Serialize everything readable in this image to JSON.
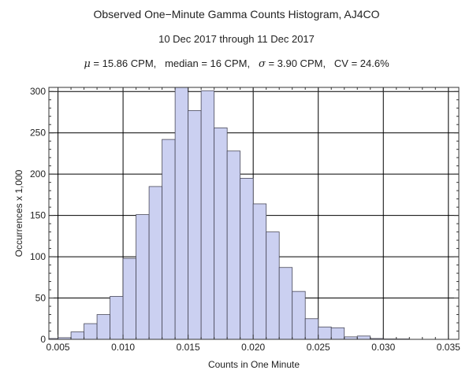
{
  "chart_data": {
    "type": "bar",
    "title": "Observed One−Minute Gamma Counts Histogram, AJ4CO",
    "subtitle": "10 Dec 2017 through 11 Dec 2017",
    "stats": {
      "mu_symbol": "μ",
      "mu_text": " = 15.86 CPM,   median = 16 CPM,   ",
      "sigma_symbol": "σ",
      "sigma_text": " = 3.90 CPM,   CV = 24.6%"
    },
    "xlabel": "Counts in One Minute",
    "ylabel": "Occurrences x 1,000",
    "xlim": [
      0.0043,
      0.0358
    ],
    "ylim": [
      0,
      305
    ],
    "bin_width": 0.001,
    "bins": [
      {
        "start": 0.004,
        "value": 1
      },
      {
        "start": 0.005,
        "value": 2
      },
      {
        "start": 0.006,
        "value": 9
      },
      {
        "start": 0.007,
        "value": 19
      },
      {
        "start": 0.008,
        "value": 30
      },
      {
        "start": 0.009,
        "value": 52
      },
      {
        "start": 0.01,
        "value": 98
      },
      {
        "start": 0.011,
        "value": 151
      },
      {
        "start": 0.012,
        "value": 185
      },
      {
        "start": 0.013,
        "value": 242
      },
      {
        "start": 0.014,
        "value": 305
      },
      {
        "start": 0.015,
        "value": 277
      },
      {
        "start": 0.016,
        "value": 301
      },
      {
        "start": 0.017,
        "value": 256
      },
      {
        "start": 0.018,
        "value": 228
      },
      {
        "start": 0.019,
        "value": 195
      },
      {
        "start": 0.02,
        "value": 164
      },
      {
        "start": 0.021,
        "value": 130
      },
      {
        "start": 0.022,
        "value": 87
      },
      {
        "start": 0.023,
        "value": 58
      },
      {
        "start": 0.024,
        "value": 25
      },
      {
        "start": 0.025,
        "value": 15
      },
      {
        "start": 0.026,
        "value": 14
      },
      {
        "start": 0.027,
        "value": 3
      },
      {
        "start": 0.028,
        "value": 4
      },
      {
        "start": 0.029,
        "value": 1
      },
      {
        "start": 0.03,
        "value": 0.5
      },
      {
        "start": 0.031,
        "value": 0.5
      }
    ],
    "x_ticks": [
      {
        "value": 0.005,
        "label": "0.005"
      },
      {
        "value": 0.01,
        "label": "0.010"
      },
      {
        "value": 0.015,
        "label": "0.015"
      },
      {
        "value": 0.02,
        "label": "0.020"
      },
      {
        "value": 0.025,
        "label": "0.025"
      },
      {
        "value": 0.03,
        "label": "0.030"
      },
      {
        "value": 0.035,
        "label": "0.035"
      }
    ],
    "y_ticks": [
      {
        "value": 0,
        "label": "0"
      },
      {
        "value": 50,
        "label": "50"
      },
      {
        "value": 100,
        "label": "100"
      },
      {
        "value": 150,
        "label": "150"
      },
      {
        "value": 200,
        "label": "200"
      },
      {
        "value": 250,
        "label": "250"
      },
      {
        "value": 300,
        "label": "300"
      }
    ],
    "grid": true,
    "colors": {
      "bar_fill": "#cbd0f1",
      "bar_stroke": "#4a4a5a",
      "grid": "#000000",
      "frame": "#333333"
    }
  }
}
